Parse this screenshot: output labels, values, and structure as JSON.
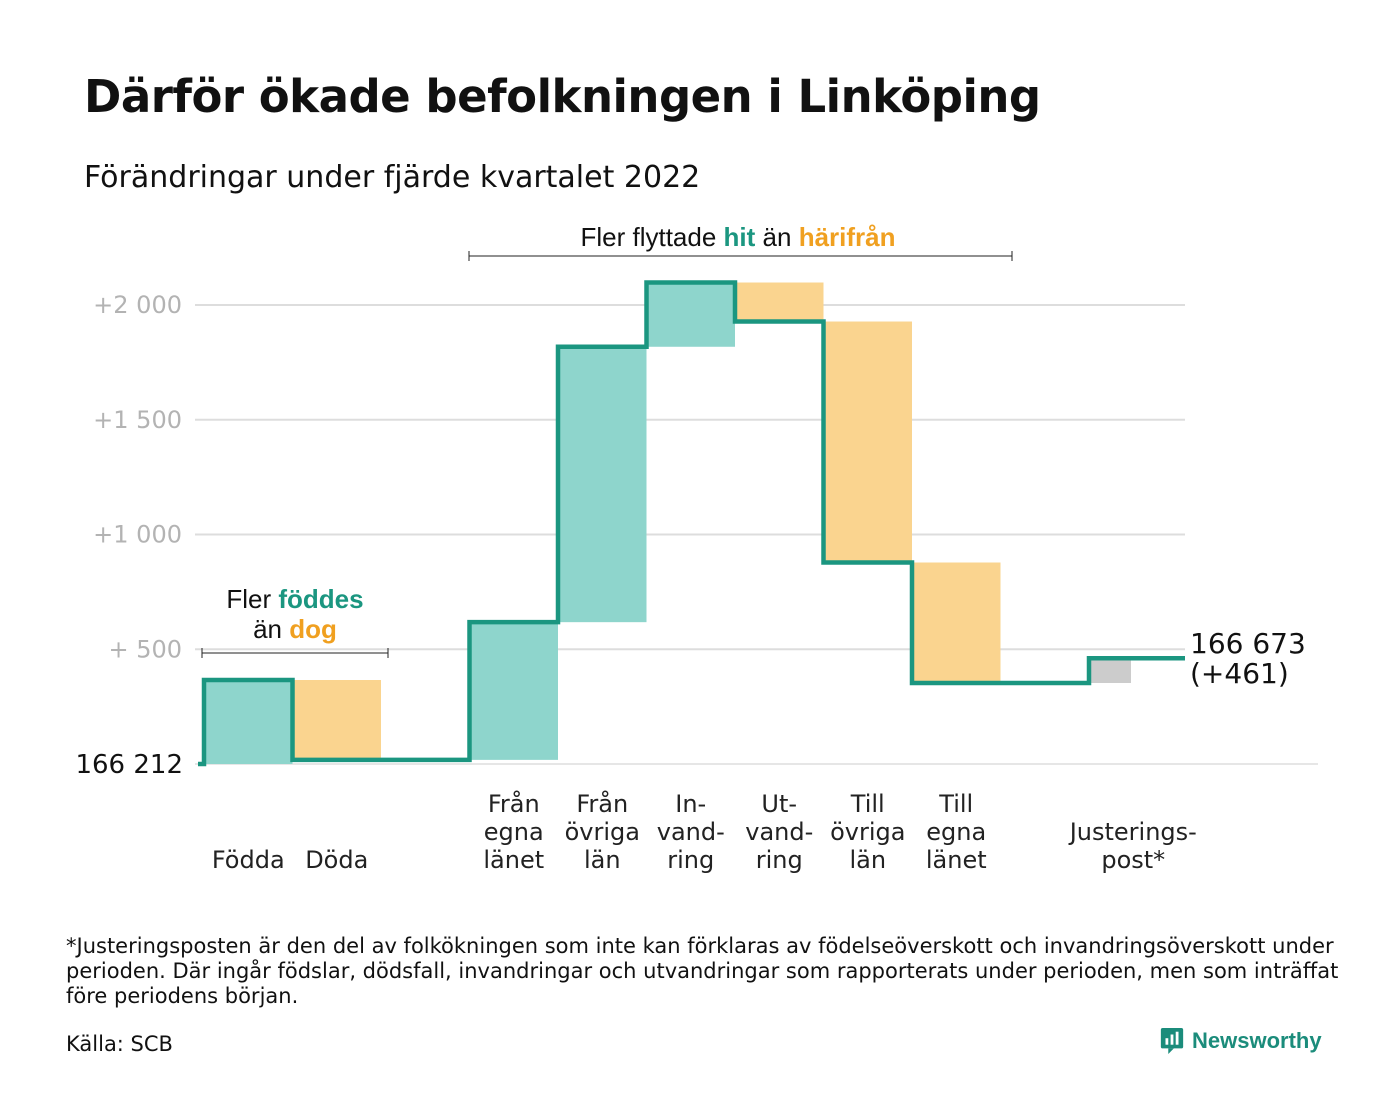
{
  "title": "Därför ökade befolkningen i Linköping",
  "subtitle": "Förändringar under fjärde kvartalet 2022",
  "colors": {
    "in": "#8ed5cc",
    "out": "#fad48f",
    "adjust": "#cccccc",
    "line": "#1b9680",
    "in_text": "#1b9680",
    "out_text": "#f0a020",
    "grid": "#dddddd"
  },
  "annotations": {
    "births": {
      "prefix": "Fler ",
      "highlight": "föddes",
      "middle": "än ",
      "highlight2": "dog"
    },
    "moves": {
      "prefix": "Fler flyttade ",
      "highlight": "hit",
      "middle": " än ",
      "highlight2": "härifrån"
    }
  },
  "chart_data": {
    "type": "waterfall",
    "start_label": "166 212",
    "end_label": "166 673",
    "end_change": "(+461)",
    "yticks": [
      {
        "value": 500,
        "label": "+ 500"
      },
      {
        "value": 1000,
        "label": "+1 000"
      },
      {
        "value": 1500,
        "label": "+1 500"
      },
      {
        "value": 2000,
        "label": "+2 000"
      }
    ],
    "ylim": [
      0,
      2100
    ],
    "steps": [
      {
        "label": [
          "Födda"
        ],
        "change": 366,
        "kind": "in"
      },
      {
        "label": [
          "Döda"
        ],
        "change": -348,
        "kind": "out"
      },
      {
        "label": [
          "Från",
          "egna",
          "länet"
        ],
        "change": 600,
        "kind": "in"
      },
      {
        "label": [
          "Från",
          "övriga",
          "län"
        ],
        "change": 1200,
        "kind": "in"
      },
      {
        "label": [
          "In-",
          "vand-",
          "ring"
        ],
        "change": 280,
        "kind": "in"
      },
      {
        "label": [
          "Ut-",
          "vand-",
          "ring"
        ],
        "change": -170,
        "kind": "out"
      },
      {
        "label": [
          "Till",
          "övriga",
          "län"
        ],
        "change": -1050,
        "kind": "out"
      },
      {
        "label": [
          "Till",
          "egna",
          "länet"
        ],
        "change": -525,
        "kind": "out"
      },
      {
        "label": [
          "Justerings-",
          "post*"
        ],
        "change": 108,
        "kind": "adjust"
      }
    ],
    "final_change": 461
  },
  "footnote": "*Justeringsposten är den del av folkökningen som inte kan förklaras av födelseöverskott och invandringsöverskott under perioden. Där ingår födslar, dödsfall, invandringar och utvandringar som rapporterats under perioden, men som inträffat före periodens början.",
  "source": "Källa: SCB",
  "brand": "Newsworthy"
}
